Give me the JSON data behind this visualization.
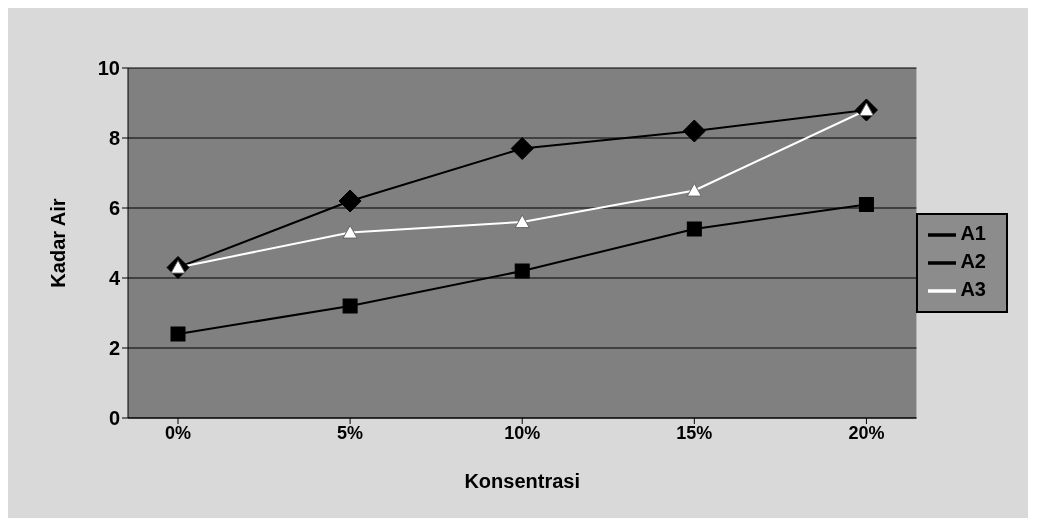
{
  "chart_data": {
    "type": "line",
    "xlabel": "Konsentrasi",
    "ylabel": "Kadar Air",
    "categories": [
      "0%",
      "5%",
      "10%",
      "15%",
      "20%"
    ],
    "series": [
      {
        "name": "A1",
        "color": "#000000",
        "marker": "diamond",
        "values": [
          4.3,
          6.2,
          7.7,
          8.2,
          8.8
        ]
      },
      {
        "name": "A2",
        "color": "#000000",
        "marker": "square",
        "values": [
          2.4,
          3.2,
          4.2,
          5.4,
          6.1
        ]
      },
      {
        "name": "A3",
        "color": "#ffffff",
        "marker": "triangle",
        "values": [
          4.3,
          5.3,
          5.6,
          6.5,
          8.8
        ]
      }
    ],
    "ylim": [
      0,
      10
    ],
    "yticks": [
      0,
      2,
      4,
      6,
      8,
      10
    ],
    "grid": "y",
    "legend": "right"
  }
}
